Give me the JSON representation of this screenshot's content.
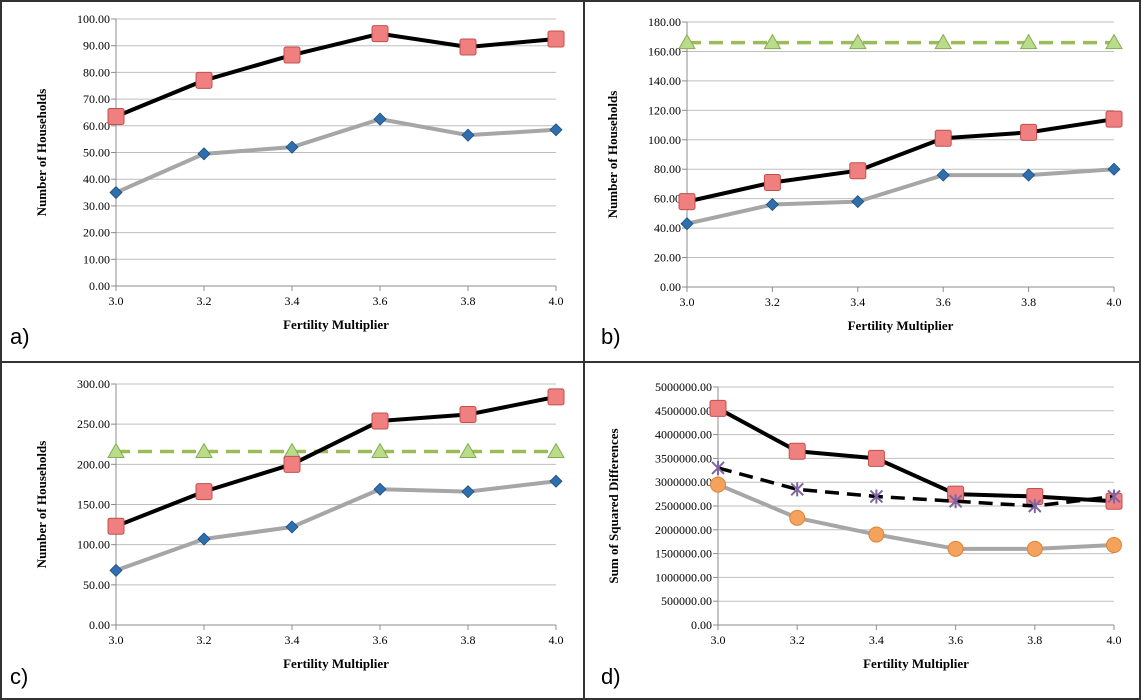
{
  "chart_data": [
    {
      "panel": "a)",
      "type": "line",
      "xlabel": "Fertility Multiplier",
      "ylabel": "Number of Households",
      "x": [
        "3.0",
        "3.2",
        "3.4",
        "3.6",
        "3.8",
        "4.0"
      ],
      "ylim": [
        0,
        100
      ],
      "yticks": [
        "0.00",
        "10.00",
        "20.00",
        "30.00",
        "40.00",
        "50.00",
        "60.00",
        "70.00",
        "80.00",
        "90.00",
        "100.00"
      ],
      "grid": true,
      "series": [
        {
          "values": [
            63.5,
            77,
            86.5,
            94.5,
            89.5,
            92.5
          ],
          "color": "#000000",
          "dash": false,
          "marker": "square",
          "marker_color": "#f08080"
        },
        {
          "values": [
            35,
            49.5,
            52,
            62.5,
            56.5,
            58.5
          ],
          "color": "#a6a6a6",
          "dash": false,
          "marker": "diamond",
          "marker_color": "#2f6fb0"
        }
      ]
    },
    {
      "panel": "b)",
      "type": "line",
      "xlabel": "Fertility Multiplier",
      "ylabel": "Number of Households",
      "x": [
        "3.0",
        "3.2",
        "3.4",
        "3.6",
        "3.8",
        "4.0"
      ],
      "ylim": [
        0,
        180
      ],
      "yticks": [
        "0.00",
        "20.00",
        "40.00",
        "60.00",
        "80.00",
        "100.00",
        "120.00",
        "140.00",
        "160.00",
        "180.00"
      ],
      "grid": true,
      "series": [
        {
          "values": [
            166,
            166,
            166,
            166,
            166,
            166
          ],
          "color": "#9bbb59",
          "dash": true,
          "marker": "triangle",
          "marker_color": "#b8dc8a"
        },
        {
          "values": [
            58,
            71,
            79,
            101,
            105,
            114
          ],
          "color": "#000000",
          "dash": false,
          "marker": "square",
          "marker_color": "#f08080"
        },
        {
          "values": [
            43,
            56,
            58,
            76,
            76,
            80
          ],
          "color": "#a6a6a6",
          "dash": false,
          "marker": "diamond",
          "marker_color": "#2f6fb0"
        }
      ]
    },
    {
      "panel": "c)",
      "type": "line",
      "xlabel": "Fertility Multiplier",
      "ylabel": "Number of Households",
      "x": [
        "3.0",
        "3.2",
        "3.4",
        "3.6",
        "3.8",
        "4.0"
      ],
      "ylim": [
        0,
        300
      ],
      "yticks": [
        "0.00",
        "50.00",
        "100.00",
        "150.00",
        "200.00",
        "250.00",
        "300.00"
      ],
      "grid": true,
      "series": [
        {
          "values": [
            216,
            216,
            216,
            216,
            216,
            216
          ],
          "color": "#9bbb59",
          "dash": true,
          "marker": "triangle",
          "marker_color": "#b8dc8a"
        },
        {
          "values": [
            123,
            166,
            200,
            254,
            262,
            284
          ],
          "color": "#000000",
          "dash": false,
          "marker": "square",
          "marker_color": "#f08080"
        },
        {
          "values": [
            68,
            107,
            122,
            169,
            166,
            179
          ],
          "color": "#a6a6a6",
          "dash": false,
          "marker": "diamond",
          "marker_color": "#2f6fb0"
        }
      ]
    },
    {
      "panel": "d)",
      "type": "line",
      "xlabel": "Fertility Multiplier",
      "ylabel": "Sum of Squared Differences",
      "x": [
        "3.0",
        "3.2",
        "3.4",
        "3.6",
        "3.8",
        "4.0"
      ],
      "ylim": [
        0,
        5000000
      ],
      "yticks": [
        "0.00",
        "500000.00",
        "1000000.00",
        "1500000.00",
        "2000000.00",
        "2500000.00",
        "3000000.00",
        "3500000.00",
        "4000000.00",
        "4500000.00",
        "5000000.00"
      ],
      "grid": true,
      "series": [
        {
          "values": [
            4550000,
            3650000,
            3500000,
            2750000,
            2700000,
            2600000
          ],
          "color": "#000000",
          "dash": false,
          "marker": "square",
          "marker_color": "#f08080"
        },
        {
          "values": [
            3300000,
            2850000,
            2700000,
            2600000,
            2500000,
            2700000
          ],
          "color": "#000000",
          "dash": true,
          "marker": "cross",
          "marker_color": "#8064a2"
        },
        {
          "values": [
            2950000,
            2250000,
            1900000,
            1600000,
            1600000,
            1680000
          ],
          "color": "#a6a6a6",
          "dash": false,
          "marker": "circle",
          "marker_color": "#f5a25d"
        }
      ]
    }
  ]
}
